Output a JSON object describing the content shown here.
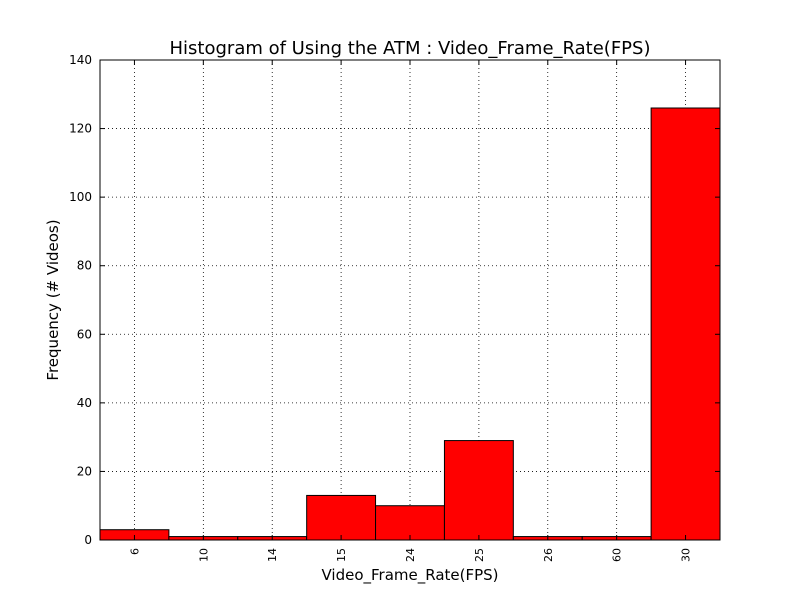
{
  "chart_data": {
    "type": "bar",
    "title": "Histogram of Using the ATM : Video_Frame_Rate(FPS)",
    "xlabel": "Video_Frame_Rate(FPS)",
    "ylabel": "Frequency (# Videos)",
    "categories": [
      "6",
      "10",
      "14",
      "15",
      "24",
      "25",
      "26",
      "60",
      "30"
    ],
    "values": [
      3,
      1,
      1,
      13,
      10,
      29,
      1,
      1,
      126
    ],
    "ylim": [
      0,
      140
    ],
    "yticks": [
      0,
      20,
      40,
      60,
      80,
      100,
      120,
      140
    ],
    "grid": true,
    "legend": "none",
    "bar_color": "#ff0000",
    "edge_color": "#000000"
  }
}
